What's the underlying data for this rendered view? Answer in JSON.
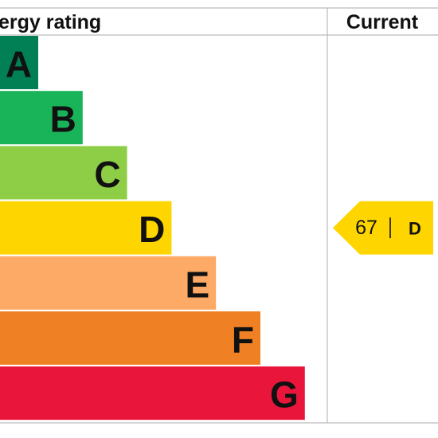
{
  "header": {
    "title": "ergy rating",
    "current": "Current"
  },
  "bands": [
    {
      "letter": "A",
      "color": "#008054"
    },
    {
      "letter": "B",
      "color": "#19b459"
    },
    {
      "letter": "C",
      "color": "#8dce46"
    },
    {
      "letter": "D",
      "color": "#ffd500"
    },
    {
      "letter": "E",
      "color": "#fcaa65"
    },
    {
      "letter": "F",
      "color": "#ef8023"
    },
    {
      "letter": "G",
      "color": "#e9153b"
    }
  ],
  "current": {
    "score": 67,
    "band": "D"
  }
}
